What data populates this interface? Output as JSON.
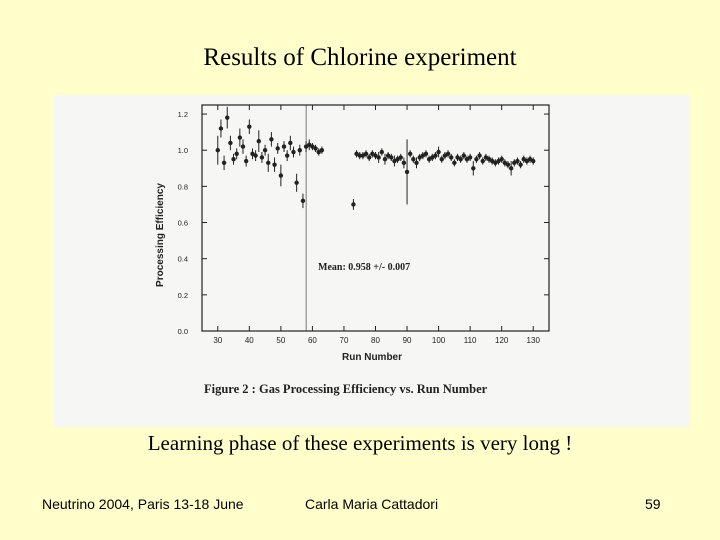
{
  "slide": {
    "title": "Results of Chlorine experiment",
    "caption": "Learning phase of these experiments is very long !",
    "footer_left": "Neutrino 2004, Paris 13-18 June",
    "footer_center": "Carla Maria Cattadori",
    "page_number": "59"
  },
  "colors": {
    "background": "#ffffcc",
    "scan_paper": "#f6f6f4",
    "ink": "#222222"
  },
  "chart_data": {
    "type": "scatter",
    "title": "",
    "figure_caption": "Figure 2 :  Gas Processing Efficiency vs. Run Number",
    "xlabel": "Run Number",
    "ylabel": "Processing Efficiency",
    "annotation": "Mean: 0.958 +/- 0.007",
    "xlim": [
      25,
      135
    ],
    "ylim": [
      0,
      1.25
    ],
    "x_ticks": [
      30,
      40,
      50,
      60,
      70,
      80,
      90,
      100,
      110,
      120,
      130
    ],
    "y_ticks": [
      0.0,
      0.2,
      0.4,
      0.6,
      0.8,
      1.0,
      1.2
    ],
    "x_tick_labels": [
      "30",
      "40",
      "50",
      "60",
      "70",
      "80",
      "90",
      "100",
      "110",
      "120",
      "130"
    ],
    "y_tick_labels": [
      "0.0",
      "0.2",
      "0.4",
      "0.6",
      "0.8",
      "1.0",
      "1.2"
    ],
    "mean_line_x": 58,
    "points": [
      {
        "x": 30,
        "y": 1.0,
        "err": 0.08
      },
      {
        "x": 31,
        "y": 1.12,
        "err": 0.05
      },
      {
        "x": 32,
        "y": 0.93,
        "err": 0.04
      },
      {
        "x": 33,
        "y": 1.18,
        "err": 0.06
      },
      {
        "x": 34,
        "y": 1.04,
        "err": 0.04
      },
      {
        "x": 35,
        "y": 0.95,
        "err": 0.03
      },
      {
        "x": 36,
        "y": 0.98,
        "err": 0.03
      },
      {
        "x": 37,
        "y": 1.07,
        "err": 0.05
      },
      {
        "x": 38,
        "y": 1.02,
        "err": 0.04
      },
      {
        "x": 39,
        "y": 0.94,
        "err": 0.03
      },
      {
        "x": 40,
        "y": 1.13,
        "err": 0.04
      },
      {
        "x": 41,
        "y": 0.98,
        "err": 0.03
      },
      {
        "x": 42,
        "y": 0.97,
        "err": 0.03
      },
      {
        "x": 43,
        "y": 1.05,
        "err": 0.06
      },
      {
        "x": 44,
        "y": 0.96,
        "err": 0.03
      },
      {
        "x": 45,
        "y": 1.0,
        "err": 0.03
      },
      {
        "x": 46,
        "y": 0.93,
        "err": 0.05
      },
      {
        "x": 47,
        "y": 1.06,
        "err": 0.04
      },
      {
        "x": 48,
        "y": 0.92,
        "err": 0.04
      },
      {
        "x": 49,
        "y": 1.01,
        "err": 0.03
      },
      {
        "x": 50,
        "y": 0.86,
        "err": 0.06
      },
      {
        "x": 51,
        "y": 1.02,
        "err": 0.03
      },
      {
        "x": 52,
        "y": 0.97,
        "err": 0.03
      },
      {
        "x": 53,
        "y": 1.04,
        "err": 0.04
      },
      {
        "x": 54,
        "y": 0.99,
        "err": 0.03
      },
      {
        "x": 55,
        "y": 0.82,
        "err": 0.05
      },
      {
        "x": 56,
        "y": 1.0,
        "err": 0.03
      },
      {
        "x": 57,
        "y": 0.72,
        "err": 0.04
      },
      {
        "x": 58,
        "y": 1.02,
        "err": 0.03
      },
      {
        "x": 59,
        "y": 1.03,
        "err": 0.03
      },
      {
        "x": 60,
        "y": 1.02,
        "err": 0.02
      },
      {
        "x": 61,
        "y": 1.01,
        "err": 0.02
      },
      {
        "x": 62,
        "y": 0.99,
        "err": 0.02
      },
      {
        "x": 63,
        "y": 1.0,
        "err": 0.02
      },
      {
        "x": 73,
        "y": 0.7,
        "err": 0.03
      },
      {
        "x": 74,
        "y": 0.98,
        "err": 0.02
      },
      {
        "x": 75,
        "y": 0.97,
        "err": 0.02
      },
      {
        "x": 76,
        "y": 0.97,
        "err": 0.02
      },
      {
        "x": 77,
        "y": 0.98,
        "err": 0.02
      },
      {
        "x": 78,
        "y": 0.96,
        "err": 0.02
      },
      {
        "x": 79,
        "y": 0.98,
        "err": 0.02
      },
      {
        "x": 80,
        "y": 0.97,
        "err": 0.02
      },
      {
        "x": 81,
        "y": 0.96,
        "err": 0.03
      },
      {
        "x": 82,
        "y": 0.99,
        "err": 0.02
      },
      {
        "x": 83,
        "y": 0.95,
        "err": 0.03
      },
      {
        "x": 84,
        "y": 0.97,
        "err": 0.02
      },
      {
        "x": 85,
        "y": 0.96,
        "err": 0.02
      },
      {
        "x": 86,
        "y": 0.94,
        "err": 0.03
      },
      {
        "x": 87,
        "y": 0.95,
        "err": 0.02
      },
      {
        "x": 88,
        "y": 0.96,
        "err": 0.02
      },
      {
        "x": 89,
        "y": 0.93,
        "err": 0.03
      },
      {
        "x": 90,
        "y": 0.88,
        "err": 0.18
      },
      {
        "x": 91,
        "y": 0.98,
        "err": 0.02
      },
      {
        "x": 92,
        "y": 0.95,
        "err": 0.02
      },
      {
        "x": 93,
        "y": 0.93,
        "err": 0.03
      },
      {
        "x": 94,
        "y": 0.96,
        "err": 0.02
      },
      {
        "x": 95,
        "y": 0.97,
        "err": 0.02
      },
      {
        "x": 96,
        "y": 0.98,
        "err": 0.02
      },
      {
        "x": 97,
        "y": 0.95,
        "err": 0.02
      },
      {
        "x": 98,
        "y": 0.96,
        "err": 0.02
      },
      {
        "x": 99,
        "y": 0.97,
        "err": 0.02
      },
      {
        "x": 100,
        "y": 0.99,
        "err": 0.03
      },
      {
        "x": 101,
        "y": 0.95,
        "err": 0.02
      },
      {
        "x": 102,
        "y": 0.97,
        "err": 0.02
      },
      {
        "x": 103,
        "y": 0.98,
        "err": 0.02
      },
      {
        "x": 104,
        "y": 0.96,
        "err": 0.02
      },
      {
        "x": 105,
        "y": 0.93,
        "err": 0.02
      },
      {
        "x": 106,
        "y": 0.96,
        "err": 0.02
      },
      {
        "x": 107,
        "y": 0.95,
        "err": 0.02
      },
      {
        "x": 108,
        "y": 0.97,
        "err": 0.02
      },
      {
        "x": 109,
        "y": 0.95,
        "err": 0.02
      },
      {
        "x": 110,
        "y": 0.96,
        "err": 0.02
      },
      {
        "x": 111,
        "y": 0.9,
        "err": 0.04
      },
      {
        "x": 112,
        "y": 0.95,
        "err": 0.02
      },
      {
        "x": 113,
        "y": 0.97,
        "err": 0.02
      },
      {
        "x": 114,
        "y": 0.94,
        "err": 0.02
      },
      {
        "x": 115,
        "y": 0.96,
        "err": 0.02
      },
      {
        "x": 116,
        "y": 0.95,
        "err": 0.02
      },
      {
        "x": 117,
        "y": 0.94,
        "err": 0.02
      },
      {
        "x": 118,
        "y": 0.93,
        "err": 0.02
      },
      {
        "x": 119,
        "y": 0.94,
        "err": 0.02
      },
      {
        "x": 120,
        "y": 0.95,
        "err": 0.02
      },
      {
        "x": 121,
        "y": 0.93,
        "err": 0.02
      },
      {
        "x": 122,
        "y": 0.92,
        "err": 0.02
      },
      {
        "x": 123,
        "y": 0.9,
        "err": 0.04
      },
      {
        "x": 124,
        "y": 0.93,
        "err": 0.02
      },
      {
        "x": 125,
        "y": 0.94,
        "err": 0.02
      },
      {
        "x": 126,
        "y": 0.92,
        "err": 0.02
      },
      {
        "x": 127,
        "y": 0.95,
        "err": 0.02
      },
      {
        "x": 128,
        "y": 0.94,
        "err": 0.02
      },
      {
        "x": 129,
        "y": 0.95,
        "err": 0.02
      },
      {
        "x": 130,
        "y": 0.94,
        "err": 0.02
      }
    ]
  }
}
